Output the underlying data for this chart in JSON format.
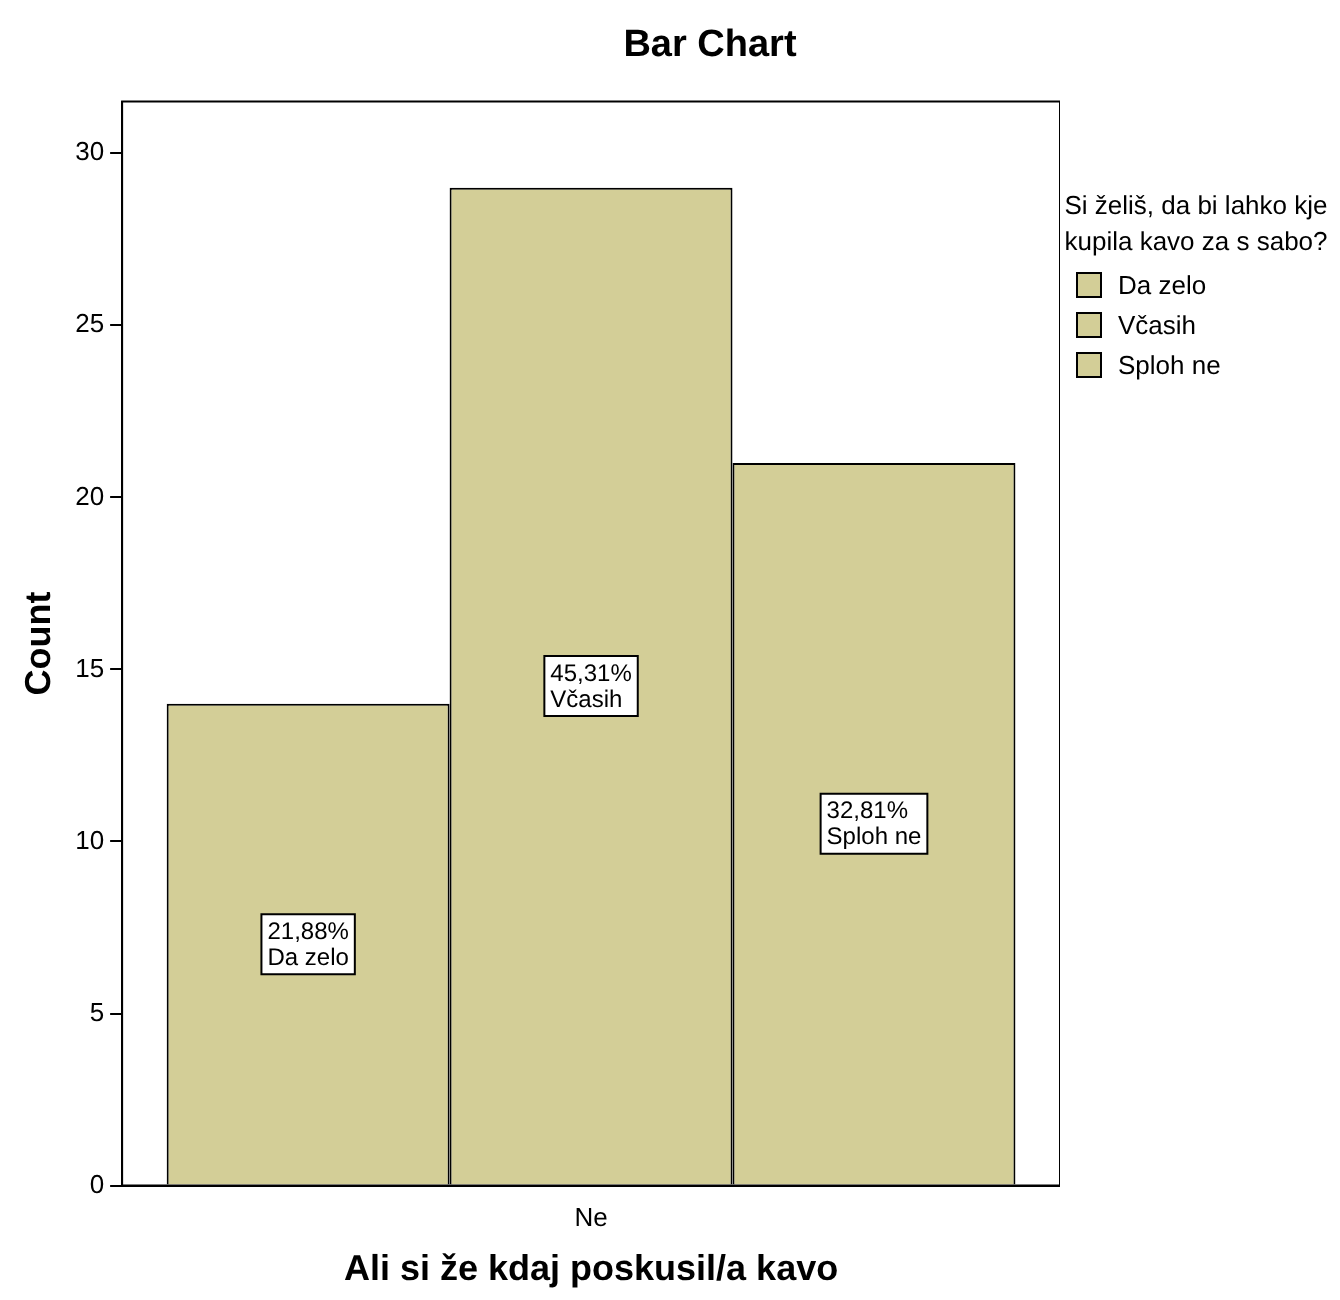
{
  "chart_data": {
    "type": "bar",
    "title": "Bar Chart",
    "xlabel": "Ali si že kdaj poskusil/a kavo",
    "ylabel": "Count",
    "legend_title": "Si želiš, da bi lahko kje kupila kavo za s sabo?",
    "categories": [
      "Ne"
    ],
    "series": [
      {
        "name": "Da zelo",
        "color": "#d3ce97",
        "values": [
          14
        ]
      },
      {
        "name": "Včasih",
        "color": "#d3ce97",
        "values": [
          29
        ]
      },
      {
        "name": "Sploh ne",
        "color": "#d3ce97",
        "values": [
          21
        ]
      }
    ],
    "annotations": [
      "21,88%",
      "45,31%",
      "32,81%"
    ],
    "ylim": [
      0,
      31.5
    ],
    "yticks": [
      0,
      5,
      10,
      15,
      20,
      25,
      30
    ],
    "grid": false,
    "legend": "right"
  }
}
